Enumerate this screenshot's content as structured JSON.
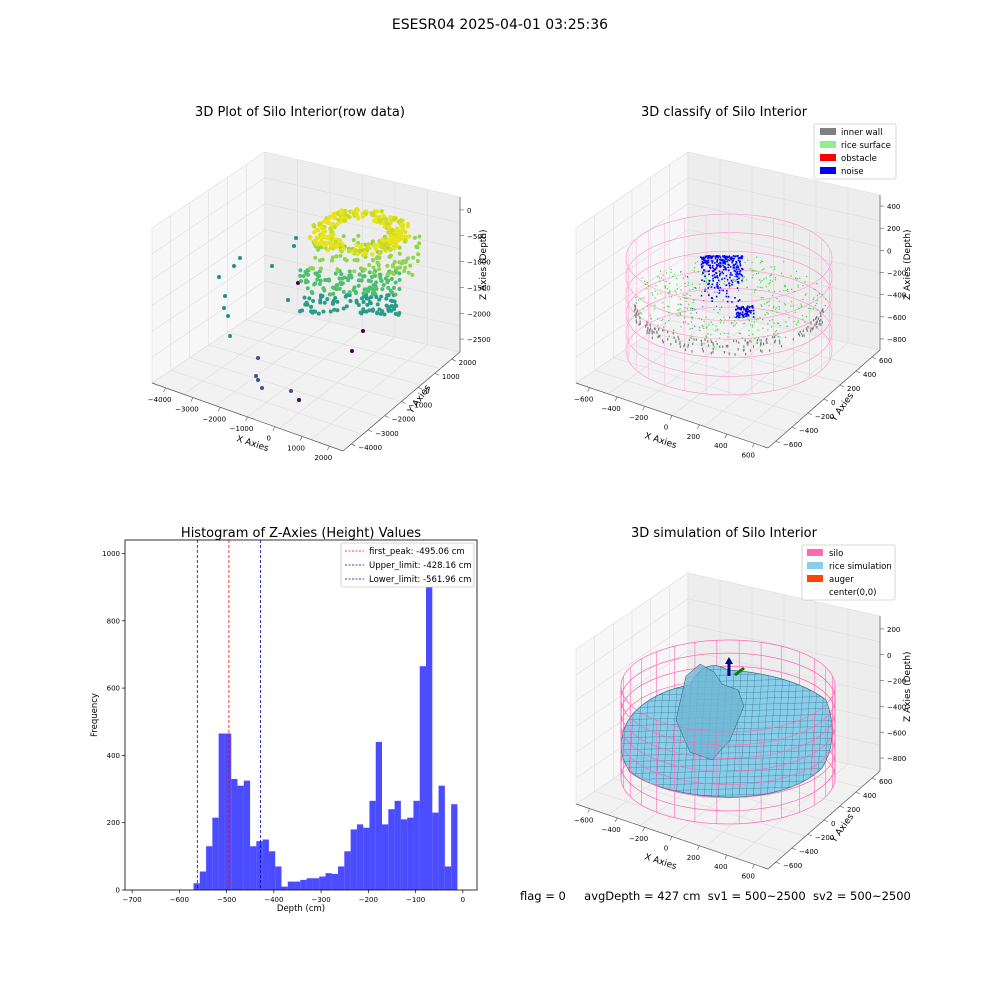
{
  "suptitle": "ESESR04 2025-04-01 03:25:36",
  "status": {
    "flag": "flag = 0",
    "avg_depth": "avgDepth = 427 cm",
    "sv1": "sv1 = 500~2500",
    "sv2": "sv2 = 500~2500"
  },
  "panels": {
    "raw": {
      "title": "3D Plot of Silo Interior(row data)",
      "xlabel": "X Axies",
      "ylabel": "Y Axies",
      "zlabel": "Z Axies (Depth)",
      "xticks": [
        "−4000",
        "−3000",
        "−2000",
        "−1000",
        "0",
        "1000",
        "2000"
      ],
      "yticks": [
        "−4000",
        "−3000",
        "−2000",
        "−1000",
        "0",
        "1000",
        "2000"
      ],
      "zticks": [
        "0",
        "−500",
        "−1000",
        "−1500",
        "−2000",
        "−2500"
      ]
    },
    "classify": {
      "title": "3D classify of Silo Interior",
      "xlabel": "X Axies",
      "ylabel": "Y Axies",
      "zlabel": "Z Axies (Depth)",
      "xticks": [
        "−600",
        "−400",
        "−200",
        "0",
        "200",
        "400",
        "600"
      ],
      "yticks": [
        "−600",
        "−400",
        "−200",
        "0",
        "200",
        "400",
        "600"
      ],
      "zticks": [
        "400",
        "200",
        "0",
        "−200",
        "−400",
        "−600",
        "−800"
      ],
      "legend": [
        {
          "label": "inner wall",
          "color": "#808080"
        },
        {
          "label": "rice surface",
          "color": "#90ee90"
        },
        {
          "label": "obstacle",
          "color": "#ff0000"
        },
        {
          "label": "noise",
          "color": "#0000ff"
        }
      ]
    },
    "simulation": {
      "title": "3D simulation of Silo Interior",
      "xlabel": "X Axies",
      "ylabel": "Y Axies",
      "zlabel": "Z Axies (Depth)",
      "xticks": [
        "−600",
        "−400",
        "−200",
        "0",
        "200",
        "400",
        "600"
      ],
      "yticks": [
        "−600",
        "−400",
        "−200",
        "0",
        "200",
        "400",
        "600"
      ],
      "zticks": [
        "200",
        "0",
        "−200",
        "−400",
        "−600",
        "−800"
      ],
      "legend": [
        {
          "label": "silo",
          "color": "#ff69b4"
        },
        {
          "label": "rice simulation",
          "color": "#87ceeb"
        },
        {
          "label": "auger",
          "color": "#ff4500"
        },
        {
          "label": "center(0,0)",
          "color": ""
        }
      ]
    }
  },
  "chart_data": {
    "type": "bar",
    "title": "Histogram of Z-Axies (Height) Values",
    "xlabel": "Depth (cm)",
    "ylabel": "Frequency",
    "xlim": [
      -715,
      30
    ],
    "ylim": [
      0,
      1040
    ],
    "xticks": [
      -700,
      -600,
      -500,
      -400,
      -300,
      -200,
      -100,
      0
    ],
    "yticks": [
      0,
      200,
      400,
      600,
      800,
      1000
    ],
    "bar_color": "#0000ff",
    "bins": {
      "start": -570,
      "width": 13.3,
      "values": [
        20,
        55,
        130,
        215,
        465,
        465,
        330,
        310,
        325,
        130,
        145,
        150,
        115,
        70,
        10,
        25,
        25,
        30,
        35,
        35,
        40,
        50,
        48,
        70,
        115,
        180,
        195,
        185,
        265,
        440,
        195,
        240,
        265,
        210,
        215,
        265,
        665,
        1000,
        230,
        310,
        70,
        255
      ]
    },
    "vlines": [
      {
        "label": "first_peak: -495.06 cm",
        "x": -495.06,
        "color": "#ff0000"
      },
      {
        "label": "Upper_limit: -428.16 cm",
        "x": -428.16,
        "color": "#0000cc"
      },
      {
        "label": "Lower_limit: -561.96 cm",
        "x": -561.96,
        "color": "#0000cc"
      }
    ]
  }
}
